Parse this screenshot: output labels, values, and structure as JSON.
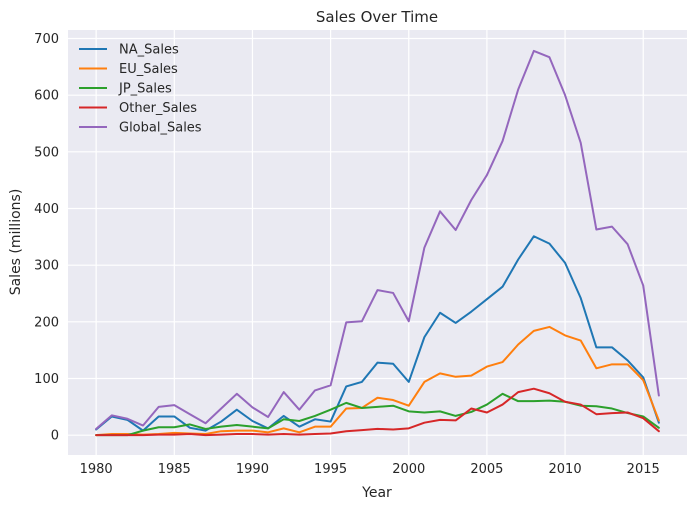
{
  "chart_data": {
    "type": "line",
    "title": "Sales Over Time",
    "xlabel": "Year",
    "ylabel": "Sales (millions)",
    "xlim": [
      1978.2,
      2017.8
    ],
    "ylim": [
      -35,
      715
    ],
    "xticks": [
      1980,
      1985,
      1990,
      1995,
      2000,
      2005,
      2010,
      2015
    ],
    "yticks": [
      0,
      100,
      200,
      300,
      400,
      500,
      600,
      700
    ],
    "grid": true,
    "legend_position": "top-left",
    "x": [
      1980,
      1981,
      1982,
      1983,
      1984,
      1985,
      1986,
      1987,
      1988,
      1989,
      1990,
      1991,
      1992,
      1993,
      1994,
      1995,
      1996,
      1997,
      1998,
      1999,
      2000,
      2001,
      2002,
      2003,
      2004,
      2005,
      2006,
      2007,
      2008,
      2009,
      2010,
      2011,
      2012,
      2013,
      2014,
      2015,
      2016
    ],
    "series": [
      {
        "name": "NA_Sales",
        "color": "#1f77b4",
        "values": [
          10,
          33,
          27,
          8,
          33,
          33,
          13,
          8,
          24,
          45,
          25,
          12,
          34,
          15,
          28,
          24,
          86,
          94,
          128,
          126,
          94,
          173,
          216,
          198,
          218,
          240,
          262,
          310,
          351,
          338,
          304,
          242,
          155,
          155,
          132,
          102,
          22
        ]
      },
      {
        "name": "EU_Sales",
        "color": "#ff7f0e",
        "values": [
          0,
          2,
          2,
          1,
          2,
          4,
          3,
          2,
          7,
          8,
          8,
          5,
          12,
          5,
          15,
          15,
          47,
          48,
          66,
          62,
          52,
          94,
          109,
          103,
          105,
          121,
          129,
          160,
          184,
          191,
          176,
          167,
          118,
          125,
          125,
          97,
          26
        ]
      },
      {
        "name": "JP_Sales",
        "color": "#2ca02c",
        "values": [
          0,
          0,
          0,
          8,
          14,
          14,
          19,
          11,
          15,
          18,
          15,
          12,
          28,
          25,
          34,
          45,
          57,
          48,
          50,
          52,
          42,
          40,
          42,
          34,
          41,
          54,
          73,
          60,
          60,
          61,
          59,
          52,
          51,
          47,
          39,
          33,
          13
        ]
      },
      {
        "name": "Other_Sales",
        "color": "#d62728",
        "values": [
          0,
          0,
          0,
          0,
          1,
          1,
          2,
          0,
          1,
          2,
          2,
          1,
          2,
          1,
          2,
          3,
          7,
          9,
          11,
          10,
          12,
          22,
          27,
          26,
          47,
          40,
          54,
          76,
          82,
          74,
          59,
          54,
          37,
          39,
          40,
          30,
          7
        ]
      },
      {
        "name": "Global_Sales",
        "color": "#9467bd",
        "values": [
          11,
          35,
          29,
          17,
          50,
          53,
          37,
          21,
          47,
          73,
          49,
          32,
          76,
          45,
          79,
          88,
          199,
          201,
          256,
          251,
          201,
          331,
          395,
          362,
          415,
          459,
          519,
          610,
          678,
          667,
          600,
          516,
          363,
          368,
          337,
          264,
          70
        ]
      }
    ]
  }
}
